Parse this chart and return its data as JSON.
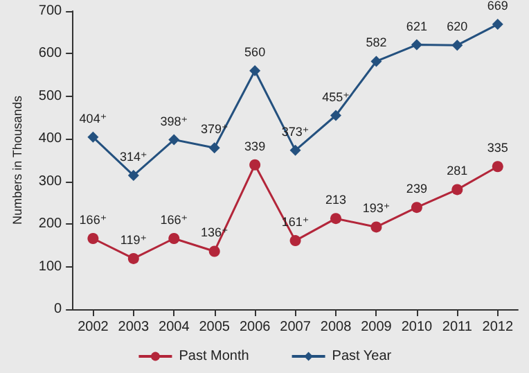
{
  "chart_data": {
    "type": "line",
    "ylabel": "Numbers in Thousands",
    "categories": [
      "2002",
      "2003",
      "2004",
      "2005",
      "2006",
      "2007",
      "2008",
      "2009",
      "2010",
      "2011",
      "2012"
    ],
    "series": [
      {
        "name": "Past Month",
        "color": "#b3263a",
        "marker": "circle",
        "values": [
          166,
          119,
          166,
          136,
          339,
          161,
          213,
          193,
          239,
          281,
          335
        ],
        "value_labels": [
          "166⁺",
          "119⁺",
          "166⁺",
          "136⁺",
          "339",
          "161⁺",
          "213",
          "193⁺",
          "239",
          "281",
          "335"
        ]
      },
      {
        "name": "Past Year",
        "color": "#24517f",
        "marker": "diamond",
        "values": [
          404,
          314,
          398,
          379,
          560,
          373,
          455,
          582,
          621,
          620,
          669
        ],
        "value_labels": [
          "404⁺",
          "314⁺",
          "398⁺",
          "379⁺",
          "560",
          "373⁺",
          "455⁺",
          "582",
          "621",
          "620",
          "669"
        ]
      }
    ],
    "ylim": [
      0,
      700
    ],
    "yticks": [
      0,
      100,
      200,
      300,
      400,
      500,
      600,
      700
    ],
    "grid": false,
    "legend": "bottom"
  }
}
